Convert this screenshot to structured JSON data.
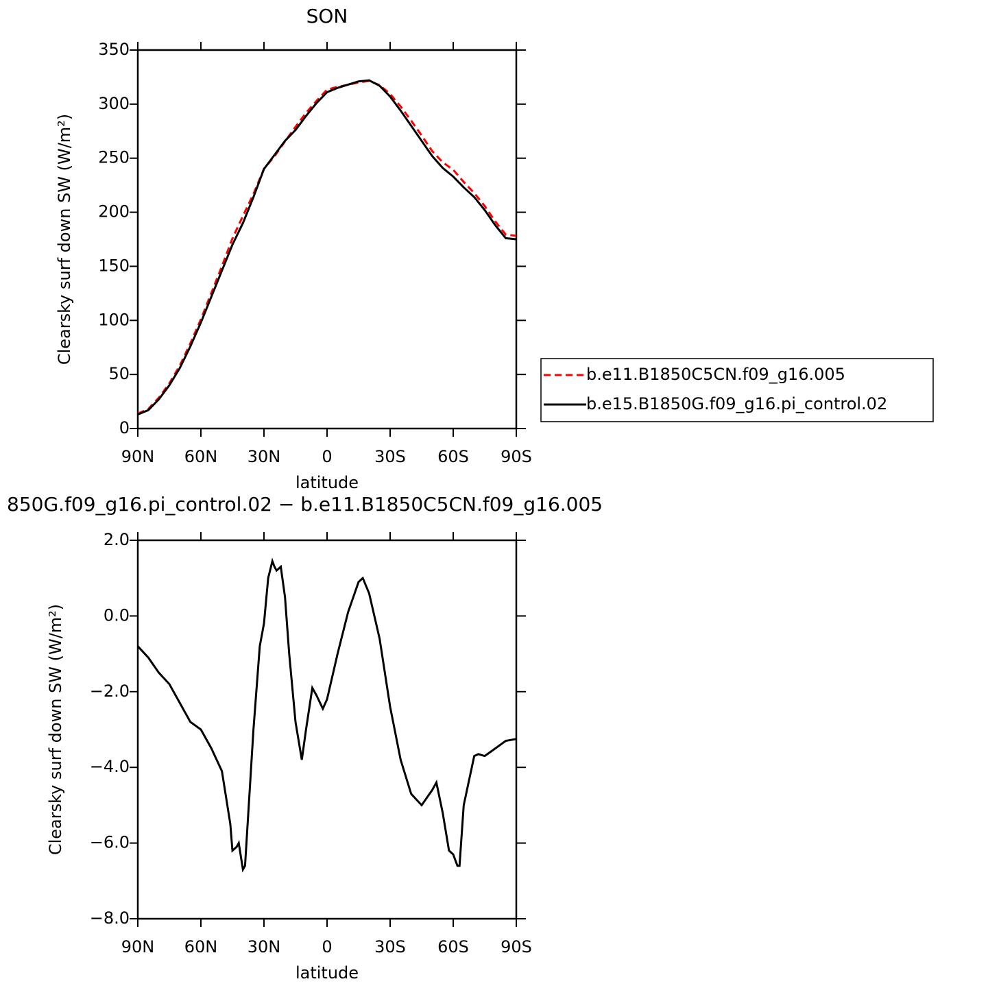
{
  "chart_data": [
    {
      "type": "line",
      "title": "SON",
      "xlabel": "latitude",
      "ylabel": "Clearsky surf down SW (W/m²)",
      "x": [
        90,
        85,
        80,
        75,
        70,
        65,
        60,
        55,
        50,
        45,
        40,
        35,
        30,
        25,
        20,
        15,
        10,
        5,
        0,
        -5,
        -10,
        -15,
        -20,
        -25,
        -30,
        -35,
        -40,
        -45,
        -50,
        -55,
        -60,
        -65,
        -70,
        -75,
        -80,
        -85,
        -90
      ],
      "series": [
        {
          "name": "b.e11.B1850C5CN.f09_g16.005",
          "color": "#ff0000",
          "linestyle": "dashed",
          "values": [
            13.8,
            18.1,
            28.5,
            41.8,
            58.3,
            78.8,
            101,
            125.5,
            150.1,
            175.8,
            196.6,
            217,
            240.2,
            251.7,
            265.5,
            279,
            291.9,
            303,
            313.4,
            316,
            317.9,
            320.1,
            321.4,
            317.6,
            309.4,
            297.8,
            284.7,
            271,
            256.6,
            246.2,
            239.3,
            228,
            217.7,
            205.7,
            191.5,
            179.3,
            178.25
          ]
        },
        {
          "name": "b.e15.B1850G.f09_g16.pi_control.02",
          "color": "#000000",
          "linestyle": "solid",
          "values": [
            13,
            17,
            27,
            40,
            56,
            76,
            98,
            122,
            146,
            170,
            190,
            214,
            240,
            253,
            266,
            276,
            289,
            301,
            311,
            315,
            318,
            321,
            322,
            317,
            307,
            294,
            280,
            266,
            252,
            241,
            233,
            223,
            214,
            202,
            188,
            176,
            175
          ]
        }
      ],
      "xlim": [
        90,
        -90
      ],
      "xticks": [
        {
          "value": 90,
          "label": "90N"
        },
        {
          "value": 60,
          "label": "60N"
        },
        {
          "value": 30,
          "label": "30N"
        },
        0,
        {
          "value": -30,
          "label": "30S"
        },
        {
          "value": -60,
          "label": "60S"
        },
        {
          "value": -90,
          "label": "90S"
        }
      ],
      "ylim": [
        0,
        350
      ],
      "yticks": [
        0,
        50,
        100,
        150,
        200,
        250,
        300,
        350
      ]
    },
    {
      "type": "line",
      "title": "850G.f09_g16.pi_control.02 − b.e11.B1850C5CN.f09_g16.005",
      "xlabel": "latitude",
      "ylabel": "Clearsky surf down SW (W/m²)",
      "x": [
        90,
        85,
        80,
        75,
        70,
        65,
        60,
        55,
        50,
        46,
        45,
        43,
        42,
        40,
        39,
        35,
        32,
        30,
        28,
        26,
        25,
        24,
        22,
        20,
        18,
        15,
        12,
        10,
        7,
        5,
        2,
        0,
        -5,
        -10,
        -15,
        -17,
        -20,
        -25,
        -30,
        -35,
        -40,
        -45,
        -50,
        -52,
        -55,
        -58,
        -60,
        -62,
        -63,
        -65,
        -70,
        -72,
        -75,
        -80,
        -85,
        -90
      ],
      "series": [
        {
          "color": "#000000",
          "linestyle": "solid",
          "values": [
            -0.8,
            -1.1,
            -1.5,
            -1.8,
            -2.3,
            -2.8,
            -3.0,
            -3.5,
            -4.1,
            -5.5,
            -6.2,
            -6.1,
            -6.0,
            -6.7,
            -6.6,
            -3.0,
            -0.8,
            -0.2,
            1.0,
            1.45,
            1.3,
            1.2,
            1.3,
            0.5,
            -1.0,
            -2.8,
            -3.8,
            -3.0,
            -1.9,
            -2.1,
            -2.45,
            -2.2,
            -1.0,
            0.1,
            0.9,
            1.0,
            0.6,
            -0.6,
            -2.4,
            -3.8,
            -4.7,
            -5.0,
            -4.6,
            -4.4,
            -5.2,
            -6.2,
            -6.3,
            -6.6,
            -6.6,
            -5.0,
            -3.7,
            -3.65,
            -3.7,
            -3.5,
            -3.3,
            -3.25
          ]
        }
      ],
      "xlim": [
        90,
        -90
      ],
      "xticks": [
        {
          "value": 90,
          "label": "90N"
        },
        {
          "value": 60,
          "label": "60N"
        },
        {
          "value": 30,
          "label": "30N"
        },
        0,
        {
          "value": -30,
          "label": "30S"
        },
        {
          "value": -60,
          "label": "60S"
        },
        {
          "value": -90,
          "label": "90S"
        }
      ],
      "ylim": [
        -8,
        2
      ],
      "yticks": [
        {
          "value": -8,
          "label": "−8.0"
        },
        {
          "value": -6,
          "label": "−6.0"
        },
        {
          "value": -4,
          "label": "−4.0"
        },
        {
          "value": -2,
          "label": "−2.0"
        },
        {
          "value": 0,
          "label": "0.0"
        },
        {
          "value": 2,
          "label": "2.0"
        }
      ]
    }
  ]
}
